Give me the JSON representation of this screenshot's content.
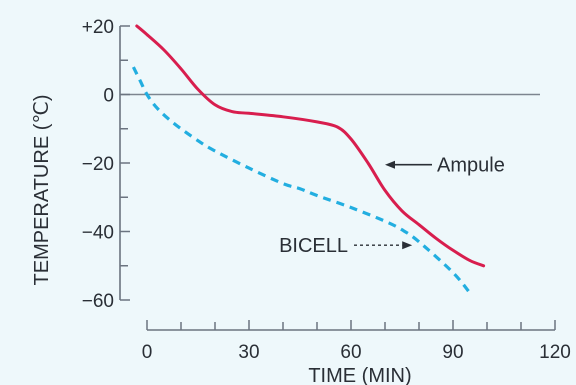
{
  "chart_data": {
    "type": "line",
    "xlabel": "TIME (MIN)",
    "ylabel": "TEMPERATURE (℃)",
    "xlim": [
      0,
      120
    ],
    "ylim": [
      -60,
      20
    ],
    "x_ticks": [
      0,
      30,
      60,
      90,
      120
    ],
    "x_tick_labels": [
      "0",
      "30",
      "60",
      "90",
      "120"
    ],
    "y_ticks": [
      20,
      0,
      -20,
      -40,
      -60
    ],
    "y_tick_labels": [
      "+20",
      "0",
      "−20",
      "−40",
      "−60"
    ],
    "zero_line": true,
    "series": [
      {
        "name": "Ampule",
        "color": "#d81e4e",
        "style": "solid",
        "x": [
          -3,
          0,
          5,
          10,
          15,
          20,
          25,
          30,
          40,
          50,
          56,
          60,
          65,
          70,
          75,
          80,
          85,
          90,
          95,
          99
        ],
        "y": [
          20,
          17.5,
          13,
          7.5,
          1.5,
          -3,
          -5,
          -5.5,
          -6.5,
          -8,
          -9.5,
          -13,
          -20,
          -28,
          -34,
          -38,
          -42,
          -45.5,
          -48.5,
          -50
        ]
      },
      {
        "name": "BICELL",
        "color": "#22aee0",
        "style": "dashed",
        "x": [
          -4,
          -2,
          0,
          3,
          8,
          15,
          20,
          30,
          40,
          45,
          50,
          60,
          70,
          75,
          80,
          90,
          95
        ],
        "y": [
          8,
          4,
          0,
          -4,
          -8.5,
          -13.5,
          -16.5,
          -21.5,
          -26,
          -27.5,
          -29.5,
          -33,
          -37,
          -39.5,
          -43,
          -52,
          -58
        ]
      }
    ],
    "annotations": [
      {
        "text": "Ampule",
        "series": "Ampule",
        "x": 70,
        "y": -20.5
      },
      {
        "text": "BICELL",
        "series": "BICELL",
        "x": 78,
        "y": -44
      }
    ]
  }
}
